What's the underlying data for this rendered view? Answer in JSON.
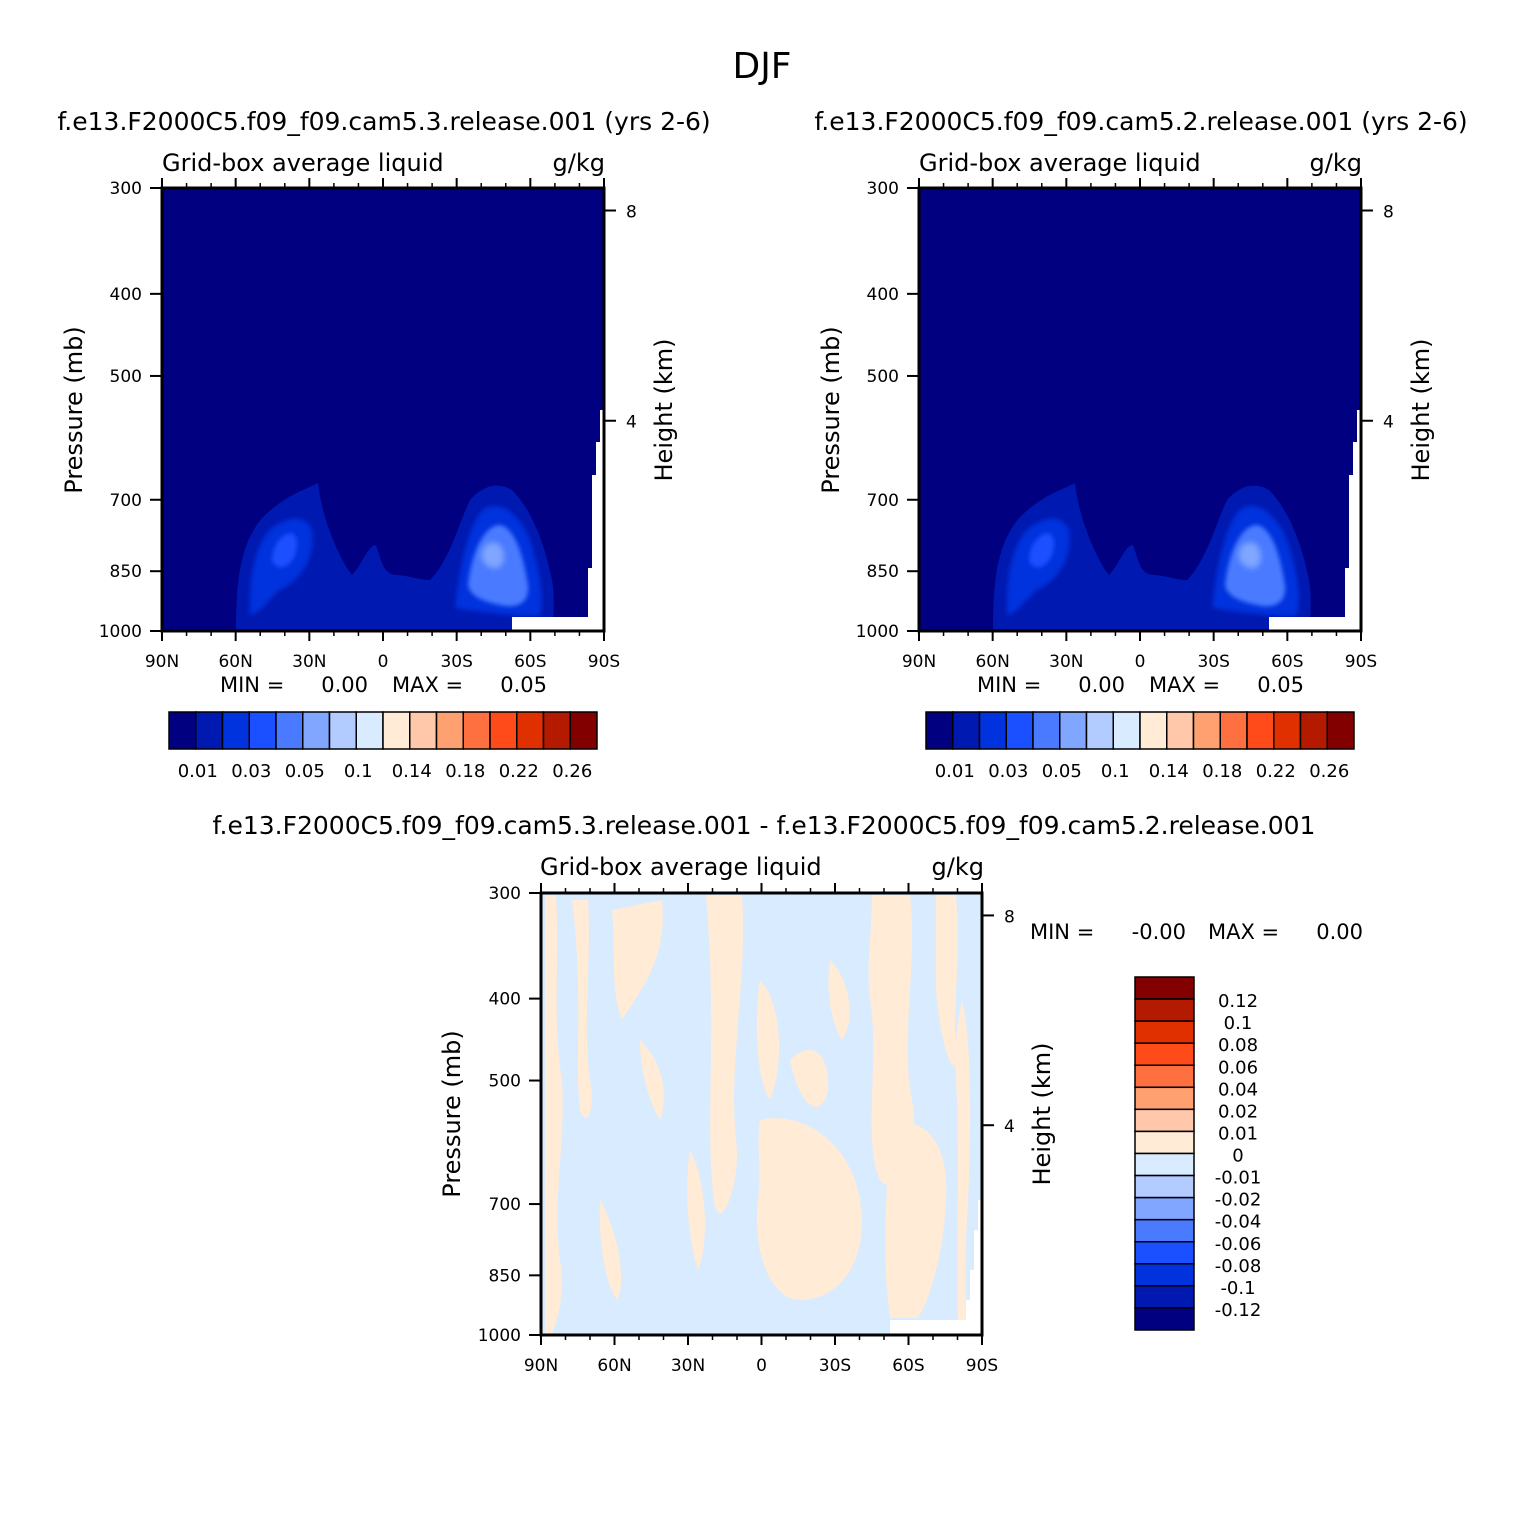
{
  "main_title": "DJF",
  "charts": [
    {
      "case_title": "f.e13.F2000C5.f09_f09.cam5.3.release.001 (yrs 2-6)",
      "var_label": "Grid-box average liquid",
      "units": "g/kg",
      "ylabel": "Pressure (mb)",
      "ylabel_right": "Height (km)",
      "min_label": "MIN =",
      "min_value": "0.00",
      "max_label": "MAX =",
      "max_value": "0.05"
    },
    {
      "case_title": "f.e13.F2000C5.f09_f09.cam5.2.release.001 (yrs 2-6)",
      "var_label": "Grid-box average liquid",
      "units": "g/kg",
      "ylabel": "Pressure (mb)",
      "ylabel_right": "Height (km)",
      "min_label": "MIN =",
      "min_value": "0.00",
      "max_label": "MAX =",
      "max_value": "0.05"
    },
    {
      "case_title": "f.e13.F2000C5.f09_f09.cam5.3.release.001 - f.e13.F2000C5.f09_f09.cam5.2.release.001",
      "var_label": "Grid-box average liquid",
      "units": "g/kg",
      "ylabel": "Pressure (mb)",
      "ylabel_right": "Height (km)",
      "min_label": "MIN =",
      "min_value": "-0.00",
      "max_label": "MAX =",
      "max_value": "0.00"
    }
  ],
  "chart_data": [
    {
      "type": "heatmap",
      "title": "f.e13.F2000C5.f09_f09.cam5.3.release.001 (yrs 2-6)",
      "x_tick_labels": [
        "90N",
        "60N",
        "30N",
        "0",
        "30S",
        "60S",
        "90S"
      ],
      "x_tick_values": [
        90,
        60,
        30,
        0,
        -30,
        -60,
        -90
      ],
      "y_tick_labels": [
        "300",
        "400",
        "500",
        "700",
        "850",
        "1000"
      ],
      "y_tick_values": [
        300,
        400,
        500,
        700,
        850,
        1000
      ],
      "y_right_tick_labels": [
        "8",
        "4"
      ],
      "y_right_tick_values": [
        8,
        4
      ],
      "ylim": [
        1000,
        300
      ],
      "xlim": [
        90,
        -90
      ],
      "ylabel": "Pressure (mb)",
      "ylabel_right": "Height (km)",
      "min": 0.0,
      "max": 0.05,
      "contour_levels": [
        0.01,
        0.02,
        0.03,
        0.04,
        0.05,
        0.06,
        0.08,
        0.1,
        0.12,
        0.14,
        0.16,
        0.18,
        0.2,
        0.22,
        0.24,
        0.26
      ],
      "colorbar_labels": [
        "0.01",
        "0.03",
        "0.05",
        "0.1",
        "0.14",
        "0.18",
        "0.22",
        "0.26"
      ],
      "colorbar_colors": [
        "#000080",
        "#0019b0",
        "#0033dd",
        "#1a50ff",
        "#4a7aff",
        "#80a6ff",
        "#b3ccff",
        "#d9ebff",
        "#ffebd6",
        "#ffc8aa",
        "#ffa070",
        "#ff7040",
        "#ff4a1a",
        "#e03000",
        "#b41a00",
        "#820000"
      ],
      "features": [
        {
          "name": "NH midlatitude liquid maximum",
          "lat": 40,
          "p": 860,
          "value": 0.03
        },
        {
          "name": "SH midlatitude liquid maximum",
          "lat": -45,
          "p": 870,
          "value": 0.05
        }
      ]
    },
    {
      "type": "heatmap",
      "title": "f.e13.F2000C5.f09_f09.cam5.2.release.001 (yrs 2-6)",
      "x_tick_labels": [
        "90N",
        "60N",
        "30N",
        "0",
        "30S",
        "60S",
        "90S"
      ],
      "x_tick_values": [
        90,
        60,
        30,
        0,
        -30,
        -60,
        -90
      ],
      "y_tick_labels": [
        "300",
        "400",
        "500",
        "700",
        "850",
        "1000"
      ],
      "y_tick_values": [
        300,
        400,
        500,
        700,
        850,
        1000
      ],
      "y_right_tick_labels": [
        "8",
        "4"
      ],
      "y_right_tick_values": [
        8,
        4
      ],
      "ylim": [
        1000,
        300
      ],
      "xlim": [
        90,
        -90
      ],
      "ylabel": "Pressure (mb)",
      "ylabel_right": "Height (km)",
      "min": 0.0,
      "max": 0.05,
      "contour_levels": [
        0.01,
        0.02,
        0.03,
        0.04,
        0.05,
        0.06,
        0.08,
        0.1,
        0.12,
        0.14,
        0.16,
        0.18,
        0.2,
        0.22,
        0.24,
        0.26
      ],
      "colorbar_labels": [
        "0.01",
        "0.03",
        "0.05",
        "0.1",
        "0.14",
        "0.18",
        "0.22",
        "0.26"
      ],
      "colorbar_colors": [
        "#000080",
        "#0019b0",
        "#0033dd",
        "#1a50ff",
        "#4a7aff",
        "#80a6ff",
        "#b3ccff",
        "#d9ebff",
        "#ffebd6",
        "#ffc8aa",
        "#ffa070",
        "#ff7040",
        "#ff4a1a",
        "#e03000",
        "#b41a00",
        "#820000"
      ],
      "features": [
        {
          "name": "NH midlatitude liquid maximum",
          "lat": 40,
          "p": 860,
          "value": 0.03
        },
        {
          "name": "SH midlatitude liquid maximum",
          "lat": -45,
          "p": 870,
          "value": 0.05
        }
      ]
    },
    {
      "type": "heatmap",
      "title": "f.e13.F2000C5.f09_f09.cam5.3.release.001 - f.e13.F2000C5.f09_f09.cam5.2.release.001",
      "x_tick_labels": [
        "90N",
        "60N",
        "30N",
        "0",
        "30S",
        "60S",
        "90S"
      ],
      "x_tick_values": [
        90,
        60,
        30,
        0,
        -30,
        -60,
        -90
      ],
      "y_tick_labels": [
        "300",
        "400",
        "500",
        "700",
        "850",
        "1000"
      ],
      "y_tick_values": [
        300,
        400,
        500,
        700,
        850,
        1000
      ],
      "y_right_tick_labels": [
        "8",
        "4"
      ],
      "y_right_tick_values": [
        8,
        4
      ],
      "ylim": [
        1000,
        300
      ],
      "xlim": [
        90,
        -90
      ],
      "ylabel": "Pressure (mb)",
      "ylabel_right": "Height (km)",
      "min": -0.0,
      "max": 0.0,
      "contour_levels": [
        -0.12,
        -0.1,
        -0.08,
        -0.06,
        -0.04,
        -0.02,
        -0.01,
        0,
        0.01,
        0.02,
        0.04,
        0.06,
        0.08,
        0.1,
        0.12
      ],
      "colorbar_labels": [
        "0.12",
        "0.1",
        "0.08",
        "0.06",
        "0.04",
        "0.02",
        "0.01",
        "0",
        "-0.01",
        "-0.02",
        "-0.04",
        "-0.06",
        "-0.08",
        "-0.1",
        "-0.12"
      ],
      "colorbar_colors": [
        "#820000",
        "#b41a00",
        "#e03000",
        "#ff4a1a",
        "#ff7040",
        "#ffa070",
        "#ffc8aa",
        "#ffebd6",
        "#d9ebff",
        "#b3ccff",
        "#80a6ff",
        "#4a7aff",
        "#1a50ff",
        "#0033dd",
        "#0019b0",
        "#000080"
      ],
      "pattern": "alternating small positive (0 to 0.01) and negative (-0.01 to 0) differences"
    }
  ]
}
